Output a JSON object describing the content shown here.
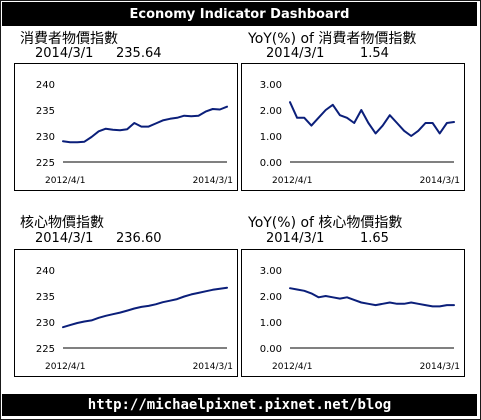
{
  "header": {
    "title": "Economy Indicator Dashboard"
  },
  "footer": {
    "url": "http://michaelpixnet.pixnet.net/blog"
  },
  "chart_data": [
    {
      "type": "line",
      "title": "消費者物價指數",
      "latest_date": "2014/3/1",
      "latest_value": "235.64",
      "x_start": "2012/4/1",
      "x_end": "2014/3/1",
      "ylim": [
        225,
        240
      ],
      "yticks": [
        "240",
        "235",
        "230",
        "225"
      ],
      "yvalues": [
        240,
        235,
        230,
        225
      ],
      "grid": false,
      "line_color": "#0b1f7a",
      "series": [
        {
          "values": [
            229.0,
            228.8,
            228.8,
            228.9,
            229.8,
            230.9,
            231.4,
            231.2,
            231.1,
            231.3,
            232.5,
            231.8,
            231.8,
            232.4,
            233.0,
            233.3,
            233.5,
            233.9,
            233.8,
            233.9,
            234.7,
            235.2,
            235.1,
            235.64
          ]
        }
      ]
    },
    {
      "type": "line",
      "title": "YoY(%) of 消費者物價指數",
      "latest_date": "2014/3/1",
      "latest_value": "1.54",
      "x_start": "2012/4/1",
      "x_end": "2014/3/1",
      "ylim": [
        0.0,
        3.0
      ],
      "yticks": [
        "3.00",
        "2.00",
        "1.00",
        "0.00"
      ],
      "yvalues": [
        3.0,
        2.0,
        1.0,
        0.0
      ],
      "grid": false,
      "line_color": "#0b1f7a",
      "series": [
        {
          "values": [
            2.3,
            1.7,
            1.7,
            1.4,
            1.7,
            2.0,
            2.2,
            1.8,
            1.7,
            1.5,
            2.0,
            1.5,
            1.1,
            1.4,
            1.8,
            1.5,
            1.2,
            1.0,
            1.2,
            1.5,
            1.5,
            1.1,
            1.5,
            1.54
          ]
        }
      ]
    },
    {
      "type": "line",
      "title": "核心物價指數",
      "latest_date": "2014/3/1",
      "latest_value": "236.60",
      "x_start": "2012/4/1",
      "x_end": "2014/3/1",
      "ylim": [
        225,
        240
      ],
      "yticks": [
        "240",
        "235",
        "230",
        "225"
      ],
      "yvalues": [
        240,
        235,
        230,
        225
      ],
      "grid": false,
      "line_color": "#0b1f7a",
      "series": [
        {
          "values": [
            229.0,
            229.4,
            229.8,
            230.1,
            230.3,
            230.8,
            231.2,
            231.5,
            231.8,
            232.2,
            232.6,
            232.9,
            233.1,
            233.4,
            233.8,
            234.1,
            234.4,
            234.9,
            235.3,
            235.6,
            235.9,
            236.2,
            236.4,
            236.6
          ]
        }
      ]
    },
    {
      "type": "line",
      "title": "YoY(%) of 核心物價指數",
      "latest_date": "2014/3/1",
      "latest_value": "1.65",
      "x_start": "2012/4/1",
      "x_end": "2014/3/1",
      "ylim": [
        0.0,
        3.0
      ],
      "yticks": [
        "3.00",
        "2.00",
        "1.00",
        "0.00"
      ],
      "yvalues": [
        3.0,
        2.0,
        1.0,
        0.0
      ],
      "grid": false,
      "line_color": "#0b1f7a",
      "series": [
        {
          "values": [
            2.3,
            2.25,
            2.2,
            2.1,
            1.95,
            2.0,
            1.95,
            1.9,
            1.95,
            1.85,
            1.75,
            1.7,
            1.65,
            1.7,
            1.75,
            1.7,
            1.7,
            1.75,
            1.7,
            1.65,
            1.6,
            1.6,
            1.65,
            1.65
          ]
        }
      ]
    }
  ]
}
